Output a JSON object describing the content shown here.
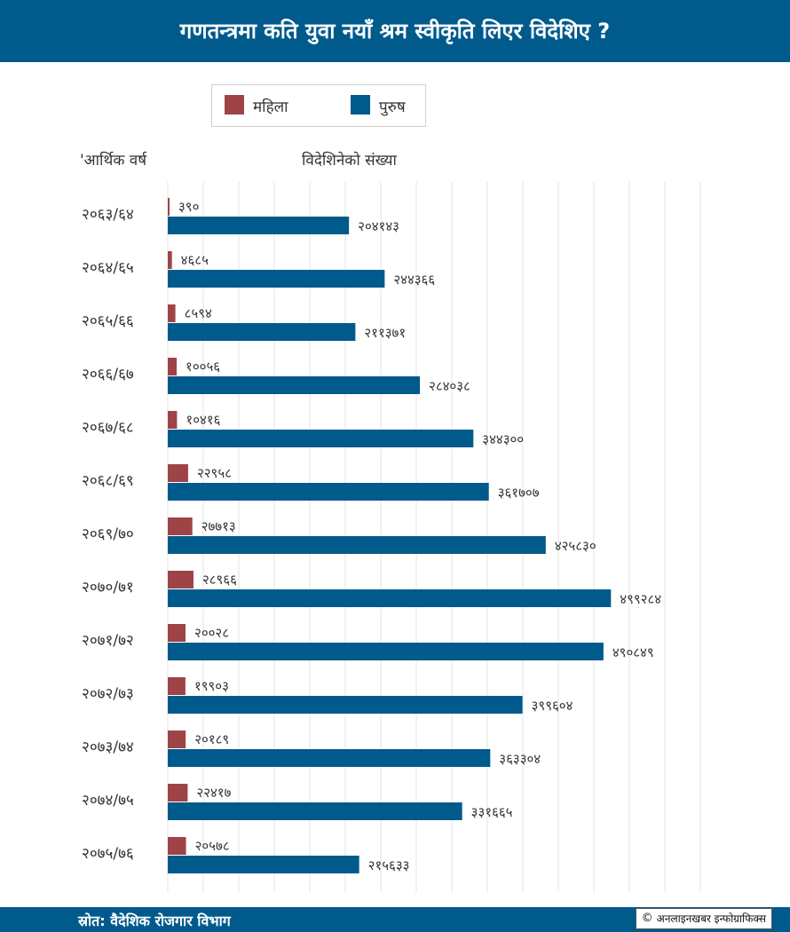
{
  "header": {
    "title": "गणतन्त्रमा कति युवा नयाँ श्रम स्वीकृति लिएर विदेशिए ?"
  },
  "legend": {
    "female_label": "महिला",
    "male_label": "पुरुष"
  },
  "columns": {
    "year_header": "'आर्थिक वर्ष",
    "count_header": "विदेशिनेको संख्या"
  },
  "footer": {
    "source": "स्रोत: वैदेशिक रोजगार विभाग",
    "credit": "अनलाइनखबर इन्फोग्राफिक्स",
    "copyright_icon": "copyright-icon"
  },
  "colors": {
    "header_bg": "#005a8c",
    "female": "#9e4447",
    "male": "#005a8c",
    "grid": "#e3e3e3"
  },
  "chart_data": {
    "type": "bar",
    "orientation": "horizontal",
    "categories": [
      "२०६३/६४",
      "२०६४/६५",
      "२०६५/६६",
      "२०६६/६७",
      "२०६७/६८",
      "२०६८/६९",
      "२०६९/७०",
      "२०७०/७१",
      "२०७१/७२",
      "२०७२/७३",
      "२०७३/७४",
      "२०७४/७५",
      "२०७५/७६"
    ],
    "series": [
      {
        "name": "महिला",
        "values": [
          390,
          4685,
          8594,
          10056,
          10416,
          22958,
          27713,
          28966,
          20028,
          19903,
          20189,
          22417,
          20578
        ],
        "labels": [
          "३९०",
          "४६८५",
          "८५९४",
          "१००५६",
          "१०४१६",
          "२२९५८",
          "२७७१३",
          "२८९६६",
          "२००२८",
          "१९९०३",
          "२०१८९",
          "२२४१७",
          "२०५७८"
        ]
      },
      {
        "name": "पुरुष",
        "values": [
          204143,
          244366,
          211371,
          284038,
          344300,
          361707,
          425830,
          499284,
          490849,
          399604,
          363304,
          331665,
          215633
        ],
        "labels": [
          "२०४१४३",
          "२४४३६६",
          "२११३७१",
          "२८४०३८",
          "३४४३००",
          "३६१७०७",
          "४२५८३०",
          "४९९२८४",
          "४९०८४९",
          "३९९६०४",
          "३६३३०४",
          "३३१६६५",
          "२१५६३३"
        ]
      }
    ],
    "xlim": [
      0,
      600000
    ],
    "grid": true,
    "legend_position": "top-left"
  }
}
